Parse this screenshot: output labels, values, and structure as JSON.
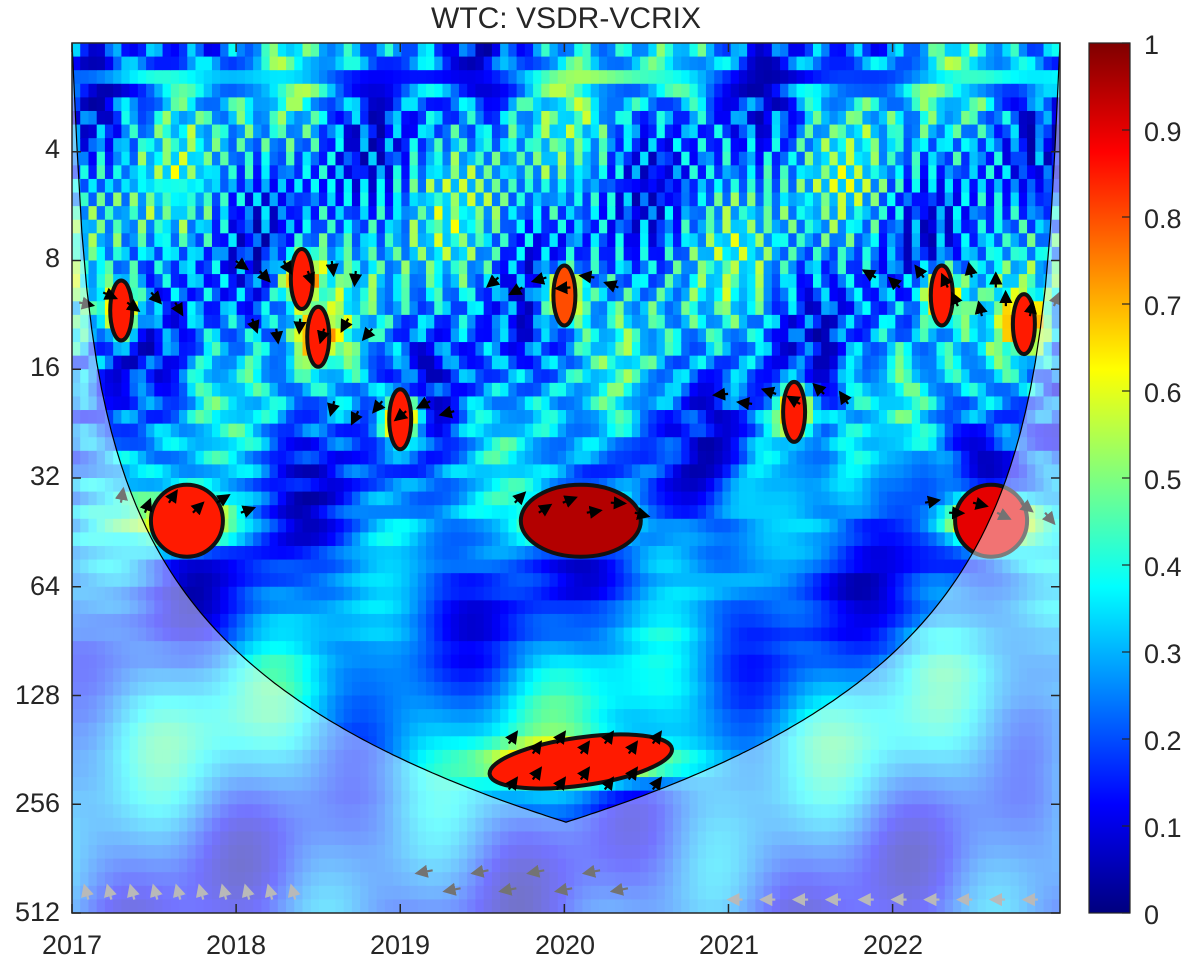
{
  "chart_data": {
    "type": "heatmap",
    "title": "WTC: VSDR-VCRIX",
    "xlabel": "",
    "ylabel": "",
    "x_ticks": [
      "2017",
      "2018",
      "2019",
      "2020",
      "2021",
      "2022"
    ],
    "y_ticks": [
      "4",
      "8",
      "16",
      "32",
      "64",
      "128",
      "256",
      "512"
    ],
    "y_scale": "log2",
    "y_reversed": true,
    "colorbar": {
      "ticks": [
        "0",
        "0.1",
        "0.2",
        "0.3",
        "0.4",
        "0.5",
        "0.6",
        "0.7",
        "0.8",
        "0.9",
        "1"
      ],
      "range": [
        0,
        1
      ],
      "colormap": "jet"
    },
    "significant_regions": [
      {
        "year": 2017.3,
        "period": 11,
        "coherence": 0.85
      },
      {
        "year": 2018.4,
        "period": 9,
        "coherence": 0.85
      },
      {
        "year": 2018.5,
        "period": 13,
        "coherence": 0.85
      },
      {
        "year": 2019.0,
        "period": 22,
        "coherence": 0.85
      },
      {
        "year": 2020.0,
        "period": 10,
        "coherence": 0.8
      },
      {
        "year": 2021.4,
        "period": 21,
        "coherence": 0.85
      },
      {
        "year": 2022.3,
        "period": 10,
        "coherence": 0.85
      },
      {
        "year": 2022.8,
        "period": 12,
        "coherence": 0.85
      },
      {
        "year": 2017.7,
        "period": 42,
        "coherence": 0.85
      },
      {
        "year": 2020.1,
        "period": 42,
        "coherence": 0.95
      },
      {
        "year": 2022.6,
        "period": 42,
        "coherence": 0.9
      },
      {
        "year": 2020.1,
        "period": 195,
        "coherence": 0.85
      }
    ]
  },
  "colors": {
    "low": "#00007f",
    "high": "#7f0000",
    "contour": "#111111",
    "arrow": "#000000",
    "coi_mask": "#ffffff"
  }
}
